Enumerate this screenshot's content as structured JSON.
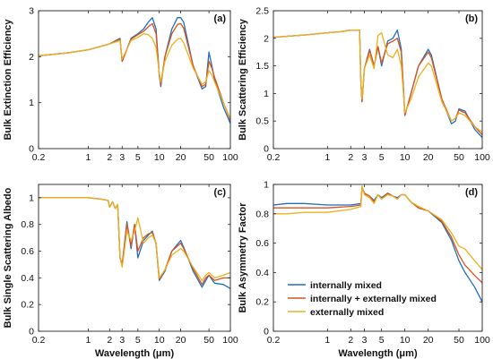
{
  "chart_data": [
    {
      "type": "line",
      "panel": "(a)",
      "ylabel": "Bulk Extinction Efficiency",
      "xlabel": "",
      "xscale": "log",
      "xlim": [
        0.2,
        100
      ],
      "ylim": [
        0,
        3
      ],
      "xticks": [
        0.2,
        1,
        2,
        3,
        5,
        10,
        20,
        50,
        100
      ],
      "xtick_labels": [
        "0.2",
        "1",
        "2",
        "3",
        "5",
        "10",
        "20",
        "50",
        "100"
      ],
      "yticks": [
        0,
        1,
        2,
        3
      ],
      "ytick_labels": [
        "0",
        "1",
        "2",
        "3"
      ],
      "x": [
        0.2,
        0.5,
        1,
        2,
        2.8,
        3,
        4,
        5,
        6,
        7,
        8,
        9,
        10,
        10.5,
        12,
        15,
        18,
        20,
        22,
        30,
        40,
        45,
        50,
        55,
        60,
        80,
        100
      ],
      "series": [
        {
          "key": "internal",
          "values": [
            2.02,
            2.08,
            2.15,
            2.28,
            2.4,
            1.9,
            2.4,
            2.5,
            2.6,
            2.75,
            2.85,
            2.6,
            1.6,
            1.35,
            2.0,
            2.6,
            2.85,
            2.85,
            2.75,
            1.8,
            1.3,
            1.35,
            2.1,
            1.8,
            1.5,
            0.9,
            0.55
          ]
        },
        {
          "key": "mixed",
          "values": [
            2.02,
            2.08,
            2.15,
            2.28,
            2.38,
            1.9,
            2.38,
            2.48,
            2.55,
            2.65,
            2.72,
            2.5,
            1.6,
            1.4,
            2.0,
            2.5,
            2.7,
            2.72,
            2.62,
            1.8,
            1.35,
            1.4,
            1.9,
            1.75,
            1.55,
            1.0,
            0.62
          ]
        },
        {
          "key": "external",
          "values": [
            2.02,
            2.08,
            2.15,
            2.28,
            2.35,
            1.95,
            2.35,
            2.42,
            2.5,
            2.48,
            2.4,
            2.2,
            1.65,
            1.45,
            1.9,
            2.25,
            2.38,
            2.4,
            2.3,
            1.75,
            1.4,
            1.45,
            1.7,
            1.6,
            1.45,
            1.0,
            0.65
          ]
        }
      ]
    },
    {
      "type": "line",
      "panel": "(b)",
      "ylabel": "Bulk Scattering Efficiency",
      "xlabel": "",
      "xscale": "log",
      "xlim": [
        0.2,
        100
      ],
      "ylim": [
        0,
        2.5
      ],
      "xticks": [
        0.2,
        1,
        2,
        3,
        5,
        10,
        20,
        50,
        100
      ],
      "xtick_labels": [
        "0.2",
        "1",
        "2",
        "3",
        "5",
        "10",
        "20",
        "50",
        "100"
      ],
      "yticks": [
        0,
        0.5,
        1,
        1.5,
        2,
        2.5
      ],
      "ytick_labels": [
        "0",
        "0.5",
        "1",
        "1.5",
        "2",
        "2.5"
      ],
      "x": [
        0.2,
        0.5,
        1,
        1.5,
        2,
        2.6,
        2.7,
        2.8,
        3,
        3.5,
        4,
        4.5,
        5,
        6,
        7,
        8,
        9,
        10,
        12,
        15,
        20,
        22,
        30,
        40,
        45,
        50,
        60,
        80,
        100
      ],
      "series": [
        {
          "key": "internal",
          "values": [
            2.02,
            2.06,
            2.1,
            2.12,
            2.15,
            2.15,
            1.2,
            0.85,
            1.45,
            1.8,
            1.5,
            1.85,
            1.5,
            1.95,
            2.0,
            2.15,
            1.8,
            0.6,
            1.0,
            1.5,
            1.8,
            1.7,
            0.9,
            0.45,
            0.5,
            0.72,
            0.68,
            0.35,
            0.2
          ]
        },
        {
          "key": "mixed",
          "values": [
            2.02,
            2.06,
            2.1,
            2.12,
            2.15,
            2.15,
            1.2,
            0.85,
            1.45,
            1.78,
            1.5,
            1.85,
            1.55,
            1.9,
            1.95,
            2.0,
            1.75,
            0.6,
            1.0,
            1.5,
            1.75,
            1.65,
            0.9,
            0.5,
            0.55,
            0.7,
            0.65,
            0.4,
            0.25
          ]
        },
        {
          "key": "external",
          "values": [
            2.02,
            2.06,
            2.1,
            2.12,
            2.15,
            2.15,
            1.2,
            0.9,
            1.45,
            1.7,
            1.45,
            2.05,
            2.1,
            1.7,
            1.65,
            1.8,
            1.5,
            0.65,
            0.9,
            1.3,
            1.55,
            1.5,
            0.85,
            0.5,
            0.55,
            0.65,
            0.6,
            0.4,
            0.3
          ]
        }
      ]
    },
    {
      "type": "line",
      "panel": "(c)",
      "ylabel": "Bulk Single Scattering Albedo",
      "xlabel": "Wavelength (μm)",
      "xscale": "log",
      "xlim": [
        0.2,
        100
      ],
      "ylim": [
        0,
        1.1
      ],
      "xticks": [
        0.2,
        1,
        2,
        3,
        5,
        10,
        20,
        50,
        100
      ],
      "xtick_labels": [
        "0.2",
        "1",
        "2",
        "3",
        "5",
        "10",
        "20",
        "50",
        "100"
      ],
      "yticks": [
        0,
        0.2,
        0.4,
        0.6,
        0.8,
        1
      ],
      "ytick_labels": [
        "0",
        "0.2",
        "0.4",
        "0.6",
        "0.8",
        "1"
      ],
      "x": [
        0.2,
        0.5,
        1,
        1.5,
        1.9,
        2.0,
        2.2,
        2.4,
        2.6,
        2.8,
        3,
        3.5,
        4,
        4.5,
        5,
        6,
        7,
        8,
        9,
        10,
        12,
        15,
        20,
        22,
        30,
        40,
        45,
        50,
        60,
        80,
        100
      ],
      "series": [
        {
          "key": "internal",
          "values": [
            1.0,
            1.0,
            1.0,
            0.99,
            0.98,
            0.93,
            0.97,
            0.92,
            0.95,
            0.55,
            0.5,
            0.82,
            0.62,
            0.8,
            0.55,
            0.68,
            0.72,
            0.75,
            0.65,
            0.38,
            0.45,
            0.6,
            0.68,
            0.63,
            0.45,
            0.33,
            0.38,
            0.42,
            0.36,
            0.35,
            0.32
          ]
        },
        {
          "key": "mixed",
          "values": [
            1.0,
            1.0,
            1.0,
            0.99,
            0.98,
            0.93,
            0.97,
            0.92,
            0.95,
            0.55,
            0.5,
            0.8,
            0.64,
            0.8,
            0.6,
            0.7,
            0.73,
            0.74,
            0.66,
            0.39,
            0.46,
            0.6,
            0.66,
            0.62,
            0.47,
            0.35,
            0.4,
            0.42,
            0.38,
            0.4,
            0.4
          ]
        },
        {
          "key": "external",
          "values": [
            1.0,
            1.0,
            1.0,
            0.99,
            0.98,
            0.93,
            0.97,
            0.92,
            0.95,
            0.55,
            0.48,
            0.75,
            0.68,
            0.75,
            0.85,
            0.66,
            0.7,
            0.72,
            0.66,
            0.4,
            0.46,
            0.57,
            0.62,
            0.6,
            0.48,
            0.38,
            0.42,
            0.44,
            0.4,
            0.42,
            0.44
          ]
        }
      ]
    },
    {
      "type": "line",
      "panel": "(d)",
      "ylabel": "Bulk Asymmetry Factor",
      "xlabel": "Wavelength (μm)",
      "xscale": "log",
      "xlim": [
        0.2,
        100
      ],
      "ylim": [
        0,
        1
      ],
      "xticks": [
        0.2,
        1,
        2,
        3,
        5,
        10,
        20,
        50,
        100
      ],
      "xtick_labels": [
        "0.2",
        "1",
        "2",
        "3",
        "5",
        "10",
        "20",
        "50",
        "100"
      ],
      "yticks": [
        0,
        0.2,
        0.4,
        0.6,
        0.8,
        1
      ],
      "ytick_labels": [
        "0",
        "0.2",
        "0.4",
        "0.6",
        "0.8",
        "1"
      ],
      "legend_position": "lower-left",
      "x": [
        0.2,
        0.3,
        0.5,
        1,
        2,
        2.7,
        2.8,
        3,
        3.5,
        4,
        4.5,
        5,
        6,
        7,
        8,
        9,
        10,
        12,
        15,
        20,
        30,
        40,
        50,
        60,
        80,
        100
      ],
      "series": [
        {
          "key": "internal",
          "name": "internally mixed",
          "values": [
            0.86,
            0.87,
            0.87,
            0.86,
            0.86,
            0.87,
            0.98,
            0.94,
            0.92,
            0.89,
            0.93,
            0.91,
            0.94,
            0.92,
            0.91,
            0.93,
            0.93,
            0.88,
            0.84,
            0.82,
            0.74,
            0.62,
            0.48,
            0.4,
            0.3,
            0.2
          ]
        },
        {
          "key": "mixed",
          "name": "internally + externally mixed",
          "values": [
            0.84,
            0.84,
            0.84,
            0.84,
            0.85,
            0.86,
            0.98,
            0.94,
            0.92,
            0.88,
            0.93,
            0.9,
            0.94,
            0.92,
            0.9,
            0.93,
            0.93,
            0.88,
            0.84,
            0.82,
            0.75,
            0.64,
            0.52,
            0.45,
            0.38,
            0.33
          ]
        },
        {
          "key": "external",
          "name": "externally mixed",
          "values": [
            0.8,
            0.8,
            0.81,
            0.81,
            0.83,
            0.85,
            0.99,
            0.93,
            0.91,
            0.87,
            0.93,
            0.9,
            0.93,
            0.92,
            0.9,
            0.93,
            0.93,
            0.88,
            0.85,
            0.82,
            0.76,
            0.67,
            0.58,
            0.56,
            0.48,
            0.42
          ]
        }
      ]
    }
  ],
  "colors": {
    "internal": "#1f6fbf",
    "mixed": "#d9531e",
    "external": "#edb120"
  }
}
